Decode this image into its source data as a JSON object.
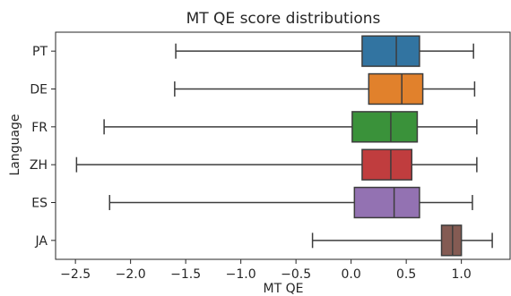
{
  "chart_data": {
    "type": "box",
    "orientation": "horizontal",
    "title": "MT QE score distributions",
    "xlabel": "MT QE",
    "ylabel": "Language",
    "xlim": [
      -2.68,
      1.45
    ],
    "xticks": [
      -2.5,
      -2.0,
      -1.5,
      -1.0,
      -0.5,
      0.0,
      0.5,
      1.0
    ],
    "xtick_labels": [
      "−2.5",
      "−2.0",
      "−1.5",
      "−1.0",
      "−0.5",
      "0.0",
      "0.5",
      "1.0"
    ],
    "grid": false,
    "categories": [
      "PT",
      "DE",
      "FR",
      "ZH",
      "ES",
      "JA"
    ],
    "boxes": [
      {
        "label": "PT",
        "whisker_low": -1.59,
        "q1": 0.1,
        "median": 0.41,
        "q3": 0.62,
        "whisker_high": 1.11,
        "color": "#3274a1"
      },
      {
        "label": "DE",
        "whisker_low": -1.6,
        "q1": 0.16,
        "median": 0.46,
        "q3": 0.65,
        "whisker_high": 1.12,
        "color": "#e1812c"
      },
      {
        "label": "FR",
        "whisker_low": -2.24,
        "q1": 0.01,
        "median": 0.36,
        "q3": 0.6,
        "whisker_high": 1.14,
        "color": "#3a923a"
      },
      {
        "label": "ZH",
        "whisker_low": -2.49,
        "q1": 0.1,
        "median": 0.36,
        "q3": 0.55,
        "whisker_high": 1.14,
        "color": "#c03d3e"
      },
      {
        "label": "ES",
        "whisker_low": -2.19,
        "q1": 0.03,
        "median": 0.39,
        "q3": 0.62,
        "whisker_high": 1.1,
        "color": "#9372b2"
      },
      {
        "label": "JA",
        "whisker_low": -0.35,
        "q1": 0.82,
        "median": 0.92,
        "q3": 1.0,
        "whisker_high": 1.28,
        "color": "#845b53"
      }
    ]
  }
}
